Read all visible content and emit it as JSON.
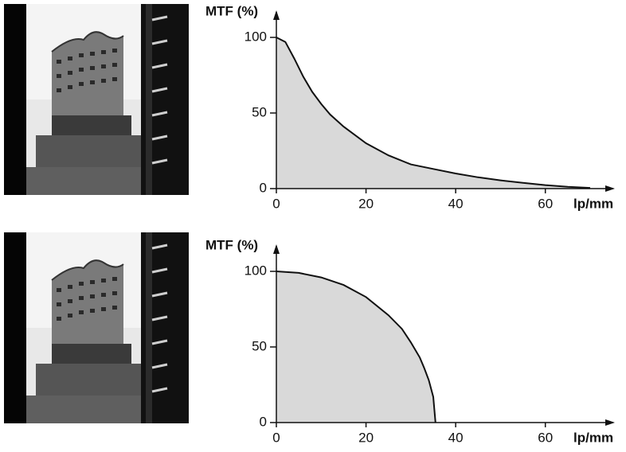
{
  "chart_data": [
    {
      "type": "area",
      "ylabel": "MTF (%)",
      "xlabel": "lp/mm",
      "x": [
        0,
        2,
        4,
        6,
        8,
        10,
        12,
        15,
        20,
        25,
        30,
        35,
        40,
        45,
        50,
        55,
        60,
        65,
        70
      ],
      "values": [
        100,
        97,
        86,
        74,
        64,
        56,
        49,
        41,
        30,
        22,
        16,
        13,
        10,
        7.5,
        5.5,
        3.8,
        2.3,
        1.2,
        0.5
      ],
      "xlim": [
        0,
        70
      ],
      "ylim": [
        0,
        100
      ],
      "xticks": [
        0,
        20,
        40,
        60
      ],
      "yticks": [
        0,
        50,
        100
      ],
      "color": "#d9d9d9",
      "line_color": "#111111"
    },
    {
      "type": "area",
      "ylabel": "MTF (%)",
      "xlabel": "lp/mm",
      "x": [
        0,
        5,
        10,
        15,
        20,
        25,
        28,
        30,
        32,
        33,
        34,
        35,
        35.5
      ],
      "values": [
        100,
        99,
        96,
        91,
        83,
        71,
        62,
        53,
        43,
        36,
        28,
        17,
        0
      ],
      "xlim": [
        0,
        70
      ],
      "ylim": [
        0,
        100
      ],
      "xticks": [
        0,
        20,
        40,
        60
      ],
      "yticks": [
        0,
        50,
        100
      ],
      "color": "#d9d9d9",
      "line_color": "#111111"
    }
  ]
}
